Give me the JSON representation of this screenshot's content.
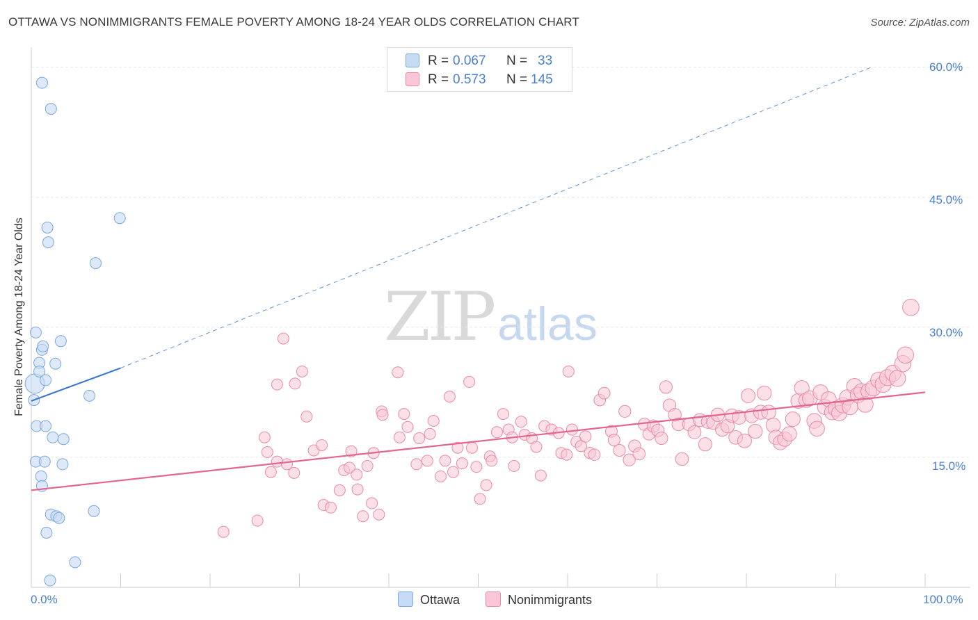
{
  "title": "OTTAWA VS NONIMMIGRANTS FEMALE POVERTY AMONG 18-24 YEAR OLDS CORRELATION CHART",
  "source": "Source: ZipAtlas.com",
  "watermark": {
    "zip": "ZIP",
    "atlas": "atlas"
  },
  "legend_top": {
    "rows": [
      {
        "r_label": "R =",
        "r_value": "0.067",
        "n_label": "N =",
        "n_value": "33"
      },
      {
        "r_label": "R =",
        "r_value": "0.573",
        "n_label": "N =",
        "n_value": "145"
      }
    ]
  },
  "legend_bottom": [
    "Ottawa",
    "Nonimmigrants"
  ],
  "colors": {
    "ottawa_fill": "#c6dbf5",
    "ottawa_stroke": "#7aa7e0",
    "ottawa_line": "#3a78d0",
    "nonimm_fill": "#f8c6d6",
    "nonimm_stroke": "#e98aa8",
    "nonimm_line": "#e2648f",
    "grid": "#e6e6e6",
    "axis_label": "#4a7fd0"
  },
  "chart_data": {
    "type": "scatter",
    "title": "OTTAWA VS NONIMMIGRANTS FEMALE POVERTY AMONG 18-24 YEAR OLDS CORRELATION CHART",
    "xlabel": "",
    "ylabel": "Female Poverty Among 18-24 Year Olds",
    "xlim": [
      0,
      100
    ],
    "ylim": [
      0,
      61.5
    ],
    "x_tick_labels": [
      "0.0%",
      "100.0%"
    ],
    "y_ticks": [
      15,
      30,
      45,
      60
    ],
    "y_tick_labels": [
      "15.0%",
      "30.0%",
      "45.0%",
      "60.0%"
    ],
    "grid": true,
    "legend_position": "bottom",
    "series": [
      {
        "name": "Ottawa",
        "R": 0.067,
        "N": 33,
        "trend_solid": [
          [
            0,
            21.5
          ],
          [
            10,
            25.3
          ]
        ],
        "trend_dashed": [
          [
            10,
            25.3
          ],
          [
            94,
            60.0
          ]
        ],
        "points": [
          [
            0.4,
            23.5
          ],
          [
            1.2,
            58.2
          ],
          [
            2.2,
            55.2
          ],
          [
            1.8,
            41.5
          ],
          [
            1.9,
            39.8
          ],
          [
            9.9,
            42.6
          ],
          [
            7.2,
            37.4
          ],
          [
            0.5,
            29.4
          ],
          [
            1.2,
            27.4
          ],
          [
            1.3,
            27.8
          ],
          [
            3.3,
            28.4
          ],
          [
            0.9,
            25.9
          ],
          [
            2.7,
            25.8
          ],
          [
            0.9,
            24.9
          ],
          [
            1.6,
            23.9
          ],
          [
            0.3,
            21.6
          ],
          [
            6.5,
            22.1
          ],
          [
            0.6,
            18.6
          ],
          [
            1.6,
            18.6
          ],
          [
            2.4,
            17.3
          ],
          [
            3.6,
            17.1
          ],
          [
            0.5,
            14.5
          ],
          [
            1.5,
            14.5
          ],
          [
            3.5,
            14.2
          ],
          [
            1.1,
            12.8
          ],
          [
            1.2,
            11.7
          ],
          [
            2.2,
            8.4
          ],
          [
            2.8,
            8.2
          ],
          [
            3.1,
            8.0
          ],
          [
            7.0,
            8.8
          ],
          [
            1.7,
            6.3
          ],
          [
            4.9,
            2.9
          ],
          [
            2.1,
            0.8
          ]
        ]
      },
      {
        "name": "Nonimmigrants",
        "R": 0.573,
        "N": 145,
        "trend": [
          [
            0,
            11.2
          ],
          [
            100,
            22.5
          ]
        ],
        "points": [
          [
            21.5,
            6.4
          ],
          [
            25.3,
            7.7
          ],
          [
            27.5,
            23.4
          ],
          [
            26.1,
            17.3
          ],
          [
            26.4,
            15.6
          ],
          [
            26.8,
            13.3
          ],
          [
            27.5,
            14.5
          ],
          [
            28.2,
            28.7
          ],
          [
            28.6,
            14.2
          ],
          [
            29.5,
            23.5
          ],
          [
            29.4,
            13.2
          ],
          [
            30.3,
            24.9
          ],
          [
            30.8,
            19.7
          ],
          [
            31.6,
            15.8
          ],
          [
            32.5,
            16.4
          ],
          [
            32.7,
            9.5
          ],
          [
            33.5,
            9.2
          ],
          [
            34.5,
            11.2
          ],
          [
            35.0,
            13.5
          ],
          [
            35.8,
            15.7
          ],
          [
            35.6,
            13.8
          ],
          [
            36.4,
            13.0
          ],
          [
            36.5,
            11.3
          ],
          [
            37.1,
            8.2
          ],
          [
            37.6,
            14.0
          ],
          [
            38.3,
            15.5
          ],
          [
            38.1,
            9.7
          ],
          [
            38.9,
            8.4
          ],
          [
            39.2,
            20.3
          ],
          [
            39.3,
            19.9
          ],
          [
            41.0,
            24.8
          ],
          [
            41.2,
            17.3
          ],
          [
            41.7,
            20.0
          ],
          [
            42.1,
            18.5
          ],
          [
            43.1,
            14.2
          ],
          [
            43.4,
            17.2
          ],
          [
            44.3,
            14.6
          ],
          [
            44.6,
            17.7
          ],
          [
            45.0,
            19.2
          ],
          [
            45.8,
            12.8
          ],
          [
            46.3,
            14.6
          ],
          [
            46.8,
            22.0
          ],
          [
            47.2,
            13.3
          ],
          [
            47.7,
            16.1
          ],
          [
            48.2,
            14.3
          ],
          [
            49.0,
            23.7
          ],
          [
            49.3,
            16.1
          ],
          [
            49.8,
            13.9
          ],
          [
            50.2,
            10.2
          ],
          [
            50.9,
            11.8
          ],
          [
            51.3,
            15.1
          ],
          [
            51.5,
            14.6
          ],
          [
            52.1,
            17.9
          ],
          [
            52.8,
            20.0
          ],
          [
            53.4,
            18.2
          ],
          [
            53.8,
            17.3
          ],
          [
            54.0,
            14.0
          ],
          [
            54.8,
            19.1
          ],
          [
            55.2,
            17.6
          ],
          [
            56.0,
            17.2
          ],
          [
            56.5,
            16.2
          ],
          [
            57.0,
            12.9
          ],
          [
            57.4,
            18.6
          ],
          [
            58.2,
            18.2
          ],
          [
            59.0,
            17.8
          ],
          [
            59.3,
            15.5
          ],
          [
            59.9,
            15.3
          ],
          [
            60.1,
            24.9
          ],
          [
            60.5,
            18.2
          ],
          [
            61.0,
            16.8
          ],
          [
            61.5,
            16.3
          ],
          [
            62.0,
            17.4
          ],
          [
            62.5,
            15.5
          ],
          [
            63.0,
            15.3
          ],
          [
            63.6,
            21.6
          ],
          [
            64.1,
            22.4
          ],
          [
            64.9,
            18.0
          ],
          [
            65.2,
            17.0
          ],
          [
            65.8,
            15.8
          ],
          [
            66.4,
            20.3
          ],
          [
            66.9,
            14.7
          ],
          [
            67.5,
            16.3
          ],
          [
            68.0,
            15.4
          ],
          [
            68.6,
            18.8
          ],
          [
            69.1,
            17.7
          ],
          [
            69.6,
            18.6
          ],
          [
            70.1,
            18.1
          ],
          [
            70.5,
            17.2
          ],
          [
            71.0,
            23.1
          ],
          [
            71.4,
            21.0
          ],
          [
            72.0,
            19.9
          ],
          [
            72.4,
            18.8
          ],
          [
            72.8,
            14.8
          ],
          [
            73.6,
            18.8
          ],
          [
            74.2,
            17.9
          ],
          [
            74.8,
            19.3
          ],
          [
            75.4,
            16.5
          ],
          [
            75.7,
            19.1
          ],
          [
            76.3,
            19.0
          ],
          [
            76.8,
            19.9
          ],
          [
            77.3,
            18.2
          ],
          [
            77.9,
            18.6
          ],
          [
            78.4,
            19.8
          ],
          [
            78.8,
            17.3
          ],
          [
            79.2,
            19.6
          ],
          [
            79.8,
            16.9
          ],
          [
            80.2,
            22.1
          ],
          [
            80.6,
            19.8
          ],
          [
            81.0,
            18.0
          ],
          [
            81.6,
            20.2
          ],
          [
            82.0,
            22.4
          ],
          [
            82.5,
            20.2
          ],
          [
            83.0,
            18.7
          ],
          [
            83.3,
            17.3
          ],
          [
            83.8,
            16.7
          ],
          [
            84.3,
            17.1
          ],
          [
            84.8,
            17.7
          ],
          [
            85.2,
            19.4
          ],
          [
            85.8,
            21.5
          ],
          [
            86.2,
            23.0
          ],
          [
            86.7,
            21.6
          ],
          [
            87.1,
            21.8
          ],
          [
            87.6,
            19.2
          ],
          [
            87.9,
            18.3
          ],
          [
            88.3,
            22.5
          ],
          [
            88.8,
            20.8
          ],
          [
            89.2,
            21.7
          ],
          [
            89.6,
            20.2
          ],
          [
            90.0,
            20.6
          ],
          [
            90.4,
            20.1
          ],
          [
            90.8,
            21.0
          ],
          [
            91.3,
            21.9
          ],
          [
            91.6,
            20.8
          ],
          [
            92.1,
            23.2
          ],
          [
            92.5,
            22.2
          ],
          [
            92.9,
            22.6
          ],
          [
            93.3,
            21.1
          ],
          [
            93.7,
            22.6
          ],
          [
            94.2,
            23.0
          ],
          [
            94.8,
            23.9
          ],
          [
            95.3,
            23.4
          ],
          [
            95.8,
            24.2
          ],
          [
            96.4,
            24.7
          ],
          [
            96.9,
            24.1
          ],
          [
            97.5,
            25.8
          ],
          [
            97.8,
            26.8
          ],
          [
            98.4,
            32.3
          ]
        ]
      }
    ]
  }
}
